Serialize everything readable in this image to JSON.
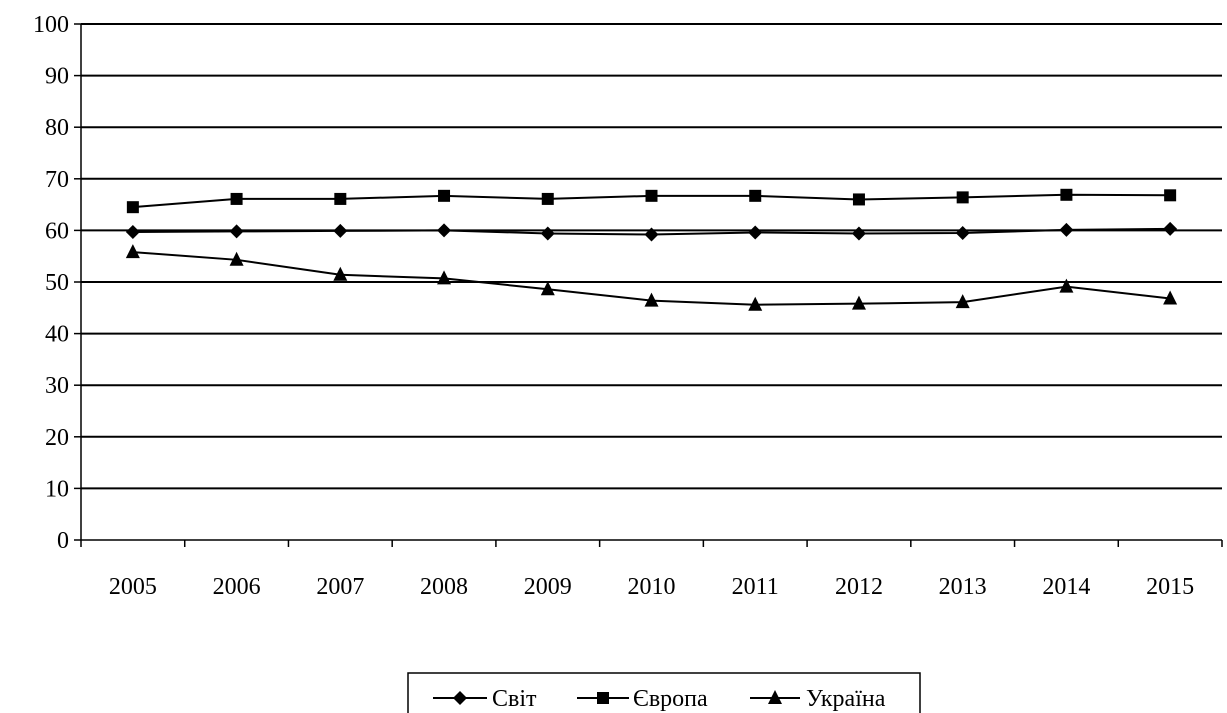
{
  "chart_data": {
    "type": "line",
    "title": "",
    "xlabel": "",
    "ylabel": "",
    "x": [
      "2005",
      "2006",
      "2007",
      "2008",
      "2009",
      "2010",
      "2011",
      "2012",
      "2013",
      "2014",
      "2015"
    ],
    "ylim": [
      0,
      100
    ],
    "yticks": [
      0,
      10,
      20,
      30,
      40,
      50,
      60,
      70,
      80,
      90,
      100
    ],
    "grid": true,
    "legend_position": "bottom",
    "series": [
      {
        "name": "Світ",
        "marker": "diamond",
        "color": "#000000",
        "values": [
          59.7,
          59.8,
          59.9,
          60.0,
          59.4,
          59.2,
          59.6,
          59.4,
          59.5,
          60.1,
          60.3
        ]
      },
      {
        "name": "Європа",
        "marker": "square",
        "color": "#000000",
        "values": [
          64.5,
          66.1,
          66.1,
          66.7,
          66.1,
          66.7,
          66.7,
          66.0,
          66.4,
          66.9,
          66.8
        ]
      },
      {
        "name": "Україна",
        "marker": "triangle",
        "color": "#000000",
        "values": [
          55.8,
          54.3,
          51.4,
          50.7,
          48.6,
          46.4,
          45.6,
          45.8,
          46.1,
          49.1,
          46.8
        ]
      }
    ]
  }
}
